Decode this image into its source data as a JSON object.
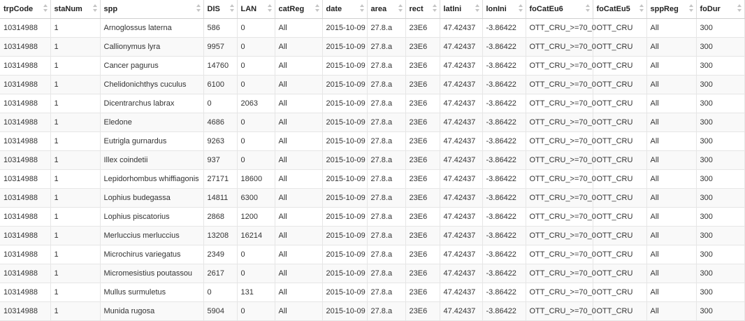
{
  "columns": [
    "trpCode",
    "staNum",
    "spp",
    "DIS",
    "LAN",
    "catReg",
    "date",
    "area",
    "rect",
    "latIni",
    "lonIni",
    "foCatEu6",
    "foCatEu5",
    "sppReg",
    "foDur"
  ],
  "rows": [
    [
      "10314988",
      "1",
      "Arnoglossus laterna",
      "586",
      "0",
      "All",
      "2015-10-09",
      "27.8.a",
      "23E6",
      "47.42437",
      "-3.86422",
      "OTT_CRU_>=70_0",
      "OTT_CRU",
      "All",
      "300"
    ],
    [
      "10314988",
      "1",
      "Callionymus lyra",
      "9957",
      "0",
      "All",
      "2015-10-09",
      "27.8.a",
      "23E6",
      "47.42437",
      "-3.86422",
      "OTT_CRU_>=70_0",
      "OTT_CRU",
      "All",
      "300"
    ],
    [
      "10314988",
      "1",
      "Cancer pagurus",
      "14760",
      "0",
      "All",
      "2015-10-09",
      "27.8.a",
      "23E6",
      "47.42437",
      "-3.86422",
      "OTT_CRU_>=70_0",
      "OTT_CRU",
      "All",
      "300"
    ],
    [
      "10314988",
      "1",
      "Chelidonichthys cuculus",
      "6100",
      "0",
      "All",
      "2015-10-09",
      "27.8.a",
      "23E6",
      "47.42437",
      "-3.86422",
      "OTT_CRU_>=70_0",
      "OTT_CRU",
      "All",
      "300"
    ],
    [
      "10314988",
      "1",
      "Dicentrarchus labrax",
      "0",
      "2063",
      "All",
      "2015-10-09",
      "27.8.a",
      "23E6",
      "47.42437",
      "-3.86422",
      "OTT_CRU_>=70_0",
      "OTT_CRU",
      "All",
      "300"
    ],
    [
      "10314988",
      "1",
      "Eledone",
      "4686",
      "0",
      "All",
      "2015-10-09",
      "27.8.a",
      "23E6",
      "47.42437",
      "-3.86422",
      "OTT_CRU_>=70_0",
      "OTT_CRU",
      "All",
      "300"
    ],
    [
      "10314988",
      "1",
      "Eutrigla gurnardus",
      "9263",
      "0",
      "All",
      "2015-10-09",
      "27.8.a",
      "23E6",
      "47.42437",
      "-3.86422",
      "OTT_CRU_>=70_0",
      "OTT_CRU",
      "All",
      "300"
    ],
    [
      "10314988",
      "1",
      "Illex coindetii",
      "937",
      "0",
      "All",
      "2015-10-09",
      "27.8.a",
      "23E6",
      "47.42437",
      "-3.86422",
      "OTT_CRU_>=70_0",
      "OTT_CRU",
      "All",
      "300"
    ],
    [
      "10314988",
      "1",
      "Lepidorhombus whiffiagonis",
      "27171",
      "18600",
      "All",
      "2015-10-09",
      "27.8.a",
      "23E6",
      "47.42437",
      "-3.86422",
      "OTT_CRU_>=70_0",
      "OTT_CRU",
      "All",
      "300"
    ],
    [
      "10314988",
      "1",
      "Lophius budegassa",
      "14811",
      "6300",
      "All",
      "2015-10-09",
      "27.8.a",
      "23E6",
      "47.42437",
      "-3.86422",
      "OTT_CRU_>=70_0",
      "OTT_CRU",
      "All",
      "300"
    ],
    [
      "10314988",
      "1",
      "Lophius piscatorius",
      "2868",
      "1200",
      "All",
      "2015-10-09",
      "27.8.a",
      "23E6",
      "47.42437",
      "-3.86422",
      "OTT_CRU_>=70_0",
      "OTT_CRU",
      "All",
      "300"
    ],
    [
      "10314988",
      "1",
      "Merluccius merluccius",
      "13208",
      "16214",
      "All",
      "2015-10-09",
      "27.8.a",
      "23E6",
      "47.42437",
      "-3.86422",
      "OTT_CRU_>=70_0",
      "OTT_CRU",
      "All",
      "300"
    ],
    [
      "10314988",
      "1",
      "Microchirus variegatus",
      "2349",
      "0",
      "All",
      "2015-10-09",
      "27.8.a",
      "23E6",
      "47.42437",
      "-3.86422",
      "OTT_CRU_>=70_0",
      "OTT_CRU",
      "All",
      "300"
    ],
    [
      "10314988",
      "1",
      "Micromesistius poutassou",
      "2617",
      "0",
      "All",
      "2015-10-09",
      "27.8.a",
      "23E6",
      "47.42437",
      "-3.86422",
      "OTT_CRU_>=70_0",
      "OTT_CRU",
      "All",
      "300"
    ],
    [
      "10314988",
      "1",
      "Mullus surmuletus",
      "0",
      "131",
      "All",
      "2015-10-09",
      "27.8.a",
      "23E6",
      "47.42437",
      "-3.86422",
      "OTT_CRU_>=70_0",
      "OTT_CRU",
      "All",
      "300"
    ],
    [
      "10314988",
      "1",
      "Munida rugosa",
      "5904",
      "0",
      "All",
      "2015-10-09",
      "27.8.a",
      "23E6",
      "47.42437",
      "-3.86422",
      "OTT_CRU_>=70_0",
      "OTT_CRU",
      "All",
      "300"
    ]
  ],
  "icons": {
    "sort": "sort-arrows-icon"
  }
}
